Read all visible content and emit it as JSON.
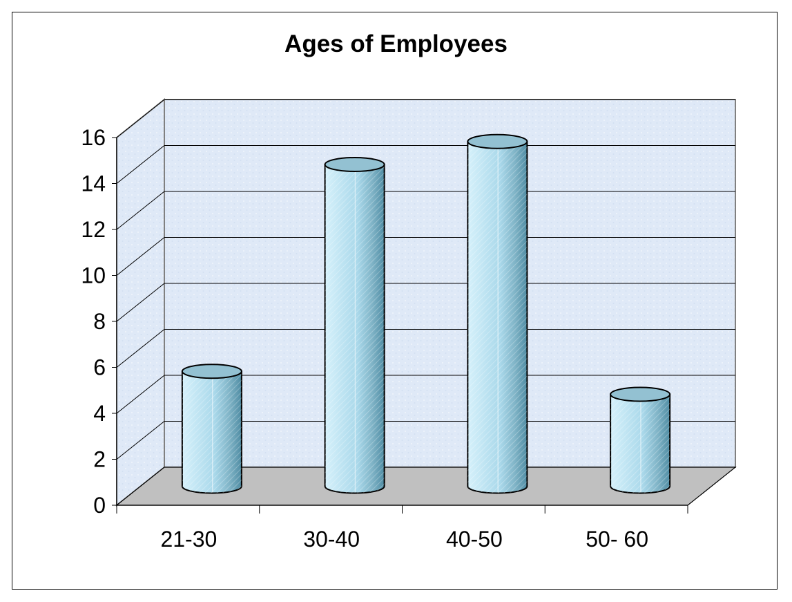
{
  "chart_data": {
    "type": "bar",
    "title": "Ages of Employees",
    "categories": [
      "21-30",
      "30-40",
      "40-50",
      "50- 60"
    ],
    "values": [
      5,
      14,
      15,
      4
    ],
    "ylim": [
      0,
      16
    ],
    "yticks": [
      "0",
      "2",
      "4",
      "6",
      "8",
      "10",
      "12",
      "14",
      "16"
    ],
    "xlabel": "",
    "ylabel": "",
    "grid": true,
    "legend": "none",
    "style": "3d-cylinder",
    "colors": {
      "bar": "#a9d8ea",
      "bar_dark": "#4f8ca3",
      "wall": "#dfe9f7",
      "floor": "#c0c0c0",
      "grid": "#000000"
    }
  }
}
